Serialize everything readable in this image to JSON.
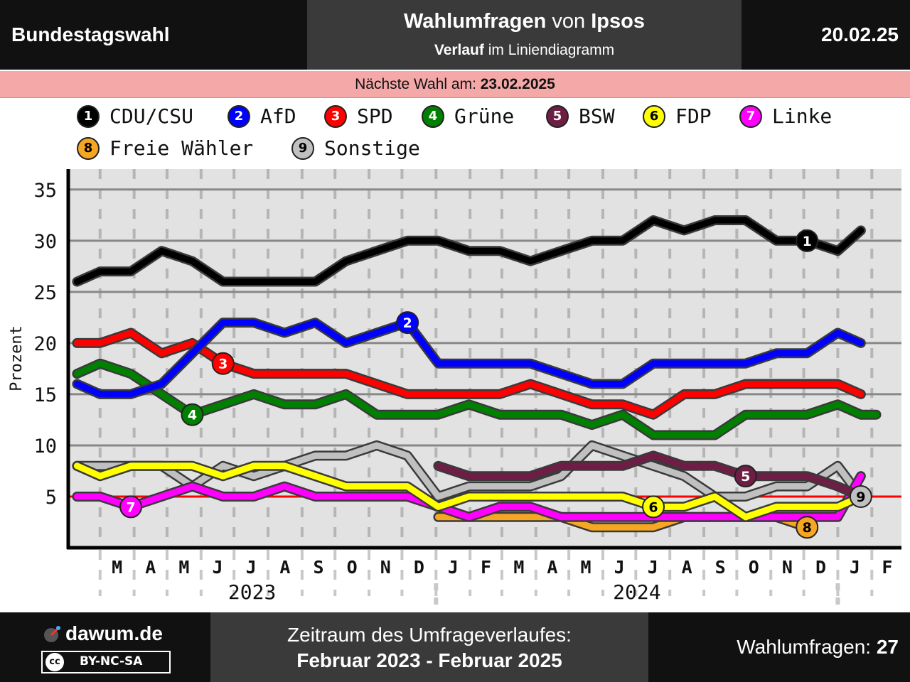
{
  "header": {
    "left": "Bundestagswahl",
    "title_bold": "Wahlumfragen",
    "title_mid": " von ",
    "title_bold2": "Ipsos",
    "subtitle_bold": "Verlauf",
    "subtitle_rest": " im Liniendiagramm",
    "date": "20.02.25"
  },
  "next_election": {
    "label": "Nächste Wahl am: ",
    "date": "23.02.2025"
  },
  "footer": {
    "brand": "dawum.de",
    "license": "BY-NC-SA",
    "license_icon": "cc",
    "period_label": "Zeitraum des Umfrageverlaufes:",
    "period": "Februar 2023 - Februar 2025",
    "polls_label": "Wahlumfragen: ",
    "polls_count": "27"
  },
  "chart_data": {
    "type": "line",
    "ylabel": "Prozent",
    "ylim": [
      0,
      37
    ],
    "yticks": [
      5,
      10,
      15,
      20,
      25,
      30,
      35
    ],
    "threshold": 5,
    "grid": true,
    "x": [
      "2023-02-08",
      "2023-03-01",
      "2023-03-29",
      "2023-04-26",
      "2023-05-24",
      "2023-06-21",
      "2023-07-19",
      "2023-08-16",
      "2023-09-13",
      "2023-10-11",
      "2023-11-08",
      "2023-12-06",
      "2024-01-03",
      "2024-01-31",
      "2024-02-28",
      "2024-03-27",
      "2024-04-24",
      "2024-05-22",
      "2024-06-19",
      "2024-07-17",
      "2024-08-14",
      "2024-09-11",
      "2024-10-09",
      "2024-11-06",
      "2024-12-04",
      "2025-01-01",
      "2025-01-22",
      "2025-02-05",
      "2025-02-19"
    ],
    "month_ticks": [
      "M",
      "A",
      "M",
      "J",
      "J",
      "A",
      "S",
      "O",
      "N",
      "D",
      "J",
      "F",
      "M",
      "A",
      "M",
      "J",
      "J",
      "A",
      "S",
      "O",
      "N",
      "D",
      "J",
      "F"
    ],
    "year_labels": [
      "2023",
      "2024"
    ],
    "series": [
      {
        "name": "CDU/CSU",
        "badge": "1",
        "color": "#000000",
        "values": [
          26,
          27,
          27,
          29,
          28,
          26,
          26,
          26,
          26,
          28,
          29,
          30,
          30,
          29,
          29,
          28,
          29,
          30,
          30,
          32,
          31,
          32,
          32,
          30,
          30,
          29,
          31,
          null,
          null
        ]
      },
      {
        "name": "AfD",
        "badge": "2",
        "color": "#0000ff",
        "values": [
          16,
          15,
          15,
          16,
          19,
          22,
          22,
          21,
          22,
          20,
          21,
          22,
          18,
          18,
          18,
          18,
          17,
          16,
          16,
          18,
          18,
          18,
          18,
          19,
          19,
          21,
          20,
          null,
          null
        ]
      },
      {
        "name": "SPD",
        "badge": "3",
        "color": "#ff0000",
        "values": [
          20,
          20,
          21,
          19,
          20,
          18,
          17,
          17,
          17,
          17,
          16,
          15,
          15,
          15,
          15,
          16,
          15,
          14,
          14,
          13,
          15,
          15,
          16,
          16,
          16,
          16,
          15,
          null,
          null
        ]
      },
      {
        "name": "Grüne",
        "badge": "4",
        "color": "#008000",
        "values": [
          17,
          18,
          17,
          15,
          13,
          14,
          15,
          14,
          14,
          15,
          13,
          13,
          13,
          14,
          13,
          13,
          13,
          12,
          13,
          11,
          11,
          11,
          13,
          13,
          13,
          14,
          13,
          13,
          null
        ]
      },
      {
        "name": "BSW",
        "badge": "5",
        "color": "#6e1e44",
        "values": [
          null,
          null,
          null,
          null,
          null,
          null,
          null,
          null,
          null,
          null,
          null,
          null,
          8,
          7,
          7,
          7,
          8,
          8,
          8,
          9,
          8,
          8,
          7,
          7,
          7,
          6,
          5,
          null,
          null
        ]
      },
      {
        "name": "FDP",
        "badge": "6",
        "color": "#ffff00",
        "values": [
          8,
          7,
          8,
          8,
          8,
          7,
          8,
          8,
          7,
          6,
          6,
          6,
          4,
          5,
          5,
          5,
          5,
          5,
          5,
          4,
          4,
          5,
          3,
          4,
          4,
          4,
          5,
          null,
          null
        ]
      },
      {
        "name": "Linke",
        "badge": "7",
        "color": "#ff00ff",
        "values": [
          5,
          5,
          4,
          5,
          6,
          5,
          5,
          6,
          5,
          5,
          5,
          5,
          4,
          3,
          4,
          4,
          3,
          3,
          3,
          3,
          3,
          3,
          3,
          3,
          3,
          3,
          7,
          null,
          null
        ]
      },
      {
        "name": "Freie Wähler",
        "badge": "8",
        "color": "#f5a623",
        "values": [
          null,
          null,
          null,
          null,
          null,
          null,
          null,
          null,
          null,
          null,
          null,
          null,
          3,
          3,
          3,
          3,
          3,
          2,
          2,
          2,
          3,
          3,
          3,
          3,
          2,
          null,
          null,
          null,
          null
        ]
      },
      {
        "name": "Sonstige",
        "badge": "9",
        "color": "#c0c0c0",
        "values": [
          8,
          8,
          8,
          8,
          6,
          8,
          7,
          8,
          9,
          9,
          10,
          9,
          5,
          6,
          6,
          6,
          7,
          10,
          9,
          8,
          7,
          5,
          5,
          6,
          6,
          8,
          5,
          null,
          null
        ]
      }
    ]
  }
}
